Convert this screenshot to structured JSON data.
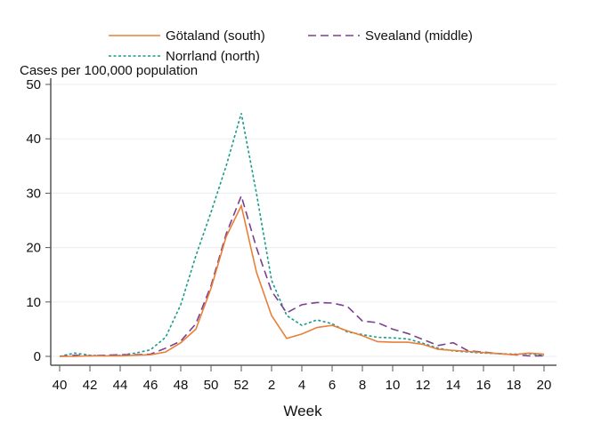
{
  "chart_data": {
    "type": "line",
    "title": "",
    "xlabel": "Week",
    "ylabel": "Cases per 100,000 population",
    "ylim": [
      0,
      50
    ],
    "yticks": [
      0,
      10,
      20,
      30,
      40,
      50
    ],
    "grid": true,
    "legend_position": "top",
    "x": [
      "40",
      "41",
      "42",
      "43",
      "44",
      "45",
      "46",
      "47",
      "48",
      "49",
      "50",
      "51",
      "52",
      "1",
      "2",
      "3",
      "4",
      "5",
      "6",
      "7",
      "8",
      "9",
      "10",
      "11",
      "12",
      "13",
      "14",
      "15",
      "16",
      "17",
      "18",
      "19",
      "20"
    ],
    "xtick_labels": [
      "40",
      "42",
      "44",
      "46",
      "48",
      "50",
      "52",
      "2",
      "4",
      "6",
      "8",
      "10",
      "12",
      "14",
      "16",
      "18",
      "20"
    ],
    "series": [
      {
        "name": "Götaland (south)",
        "color": "#e8803a",
        "dash": "solid",
        "values": [
          0,
          0,
          0.1,
          0.1,
          0.1,
          0.2,
          0.3,
          0.8,
          2.5,
          5,
          12.5,
          22,
          27.7,
          15.5,
          7.5,
          3.3,
          4.1,
          5.3,
          5.7,
          4.7,
          3.8,
          2.7,
          2.6,
          2.6,
          2.2,
          1.3,
          1.1,
          0.9,
          0.7,
          0.5,
          0.3,
          0.6,
          0.4
        ]
      },
      {
        "name": "Svealand (middle)",
        "color": "#7b3f8f",
        "dash": "long",
        "values": [
          0,
          0.2,
          0.1,
          0.2,
          0.3,
          0.3,
          0.4,
          1.5,
          2.8,
          6,
          13,
          22.5,
          29.5,
          20,
          12,
          8,
          9.5,
          9.9,
          9.8,
          9.2,
          6.5,
          6.2,
          5,
          4.2,
          3.1,
          2,
          2.5,
          1,
          0.8,
          0.5,
          0.3,
          0.1,
          0.1
        ]
      },
      {
        "name": "Norrland (north)",
        "color": "#1a9a8a",
        "dash": "short",
        "values": [
          0,
          0.6,
          0.2,
          0.1,
          0.2,
          0.6,
          1.2,
          3.5,
          9.5,
          18.5,
          26.5,
          35,
          44.7,
          30,
          14,
          7.5,
          5.7,
          6.7,
          6,
          4.5,
          4,
          3.5,
          3.4,
          3.2,
          2.4,
          1.5,
          1,
          0.8,
          0.6,
          0.5,
          0.4,
          0.5,
          0.2
        ]
      }
    ]
  }
}
